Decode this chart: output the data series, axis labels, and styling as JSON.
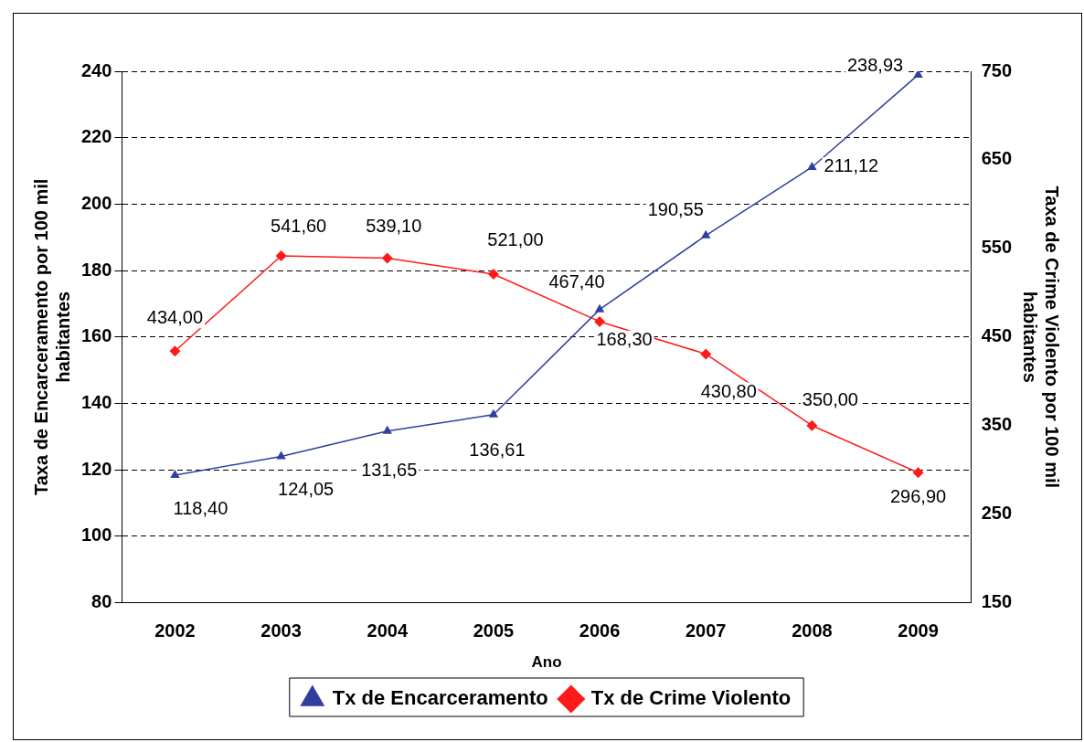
{
  "chart_data": {
    "type": "line",
    "xlabel": "Ano",
    "ylabel": "Taxa de Encarceramento por 100 mil habitantes",
    "y2label": "Taxa de Crime Violento por 100 mil habitantes",
    "categories": [
      "2002",
      "2003",
      "2004",
      "2005",
      "2006",
      "2007",
      "2008",
      "2009"
    ],
    "series": [
      {
        "name": "Tx de Encarceramento",
        "color": "#2e3f9e",
        "marker": "triangle",
        "values": [
          118.4,
          124.05,
          131.65,
          136.61,
          168.3,
          190.55,
          211.12,
          238.93
        ],
        "value_labels": [
          "118,40",
          "124,05",
          "131,65",
          "136,61",
          "168,30",
          "190,55",
          "211,12",
          "238,93"
        ]
      },
      {
        "name": "Tx de Crime Violento",
        "color": "#ff1a1a",
        "marker": "diamond",
        "axis": "y2",
        "values": [
          434.0,
          541.6,
          539.1,
          521.0,
          467.4,
          430.8,
          350.0,
          296.9
        ],
        "value_labels": [
          "434,00",
          "541,60",
          "539,10",
          "521,00",
          "467,40",
          "430,80",
          "350,00",
          "296,90"
        ]
      }
    ],
    "ylim": [
      80,
      240
    ],
    "yticks": [
      80,
      100,
      120,
      140,
      160,
      180,
      200,
      220,
      240
    ],
    "y2lim": [
      150,
      750
    ],
    "y2ticks": [
      150,
      250,
      350,
      450,
      550,
      650,
      750
    ],
    "grid": "y",
    "legend": "bottom",
    "line_style": "solid"
  }
}
